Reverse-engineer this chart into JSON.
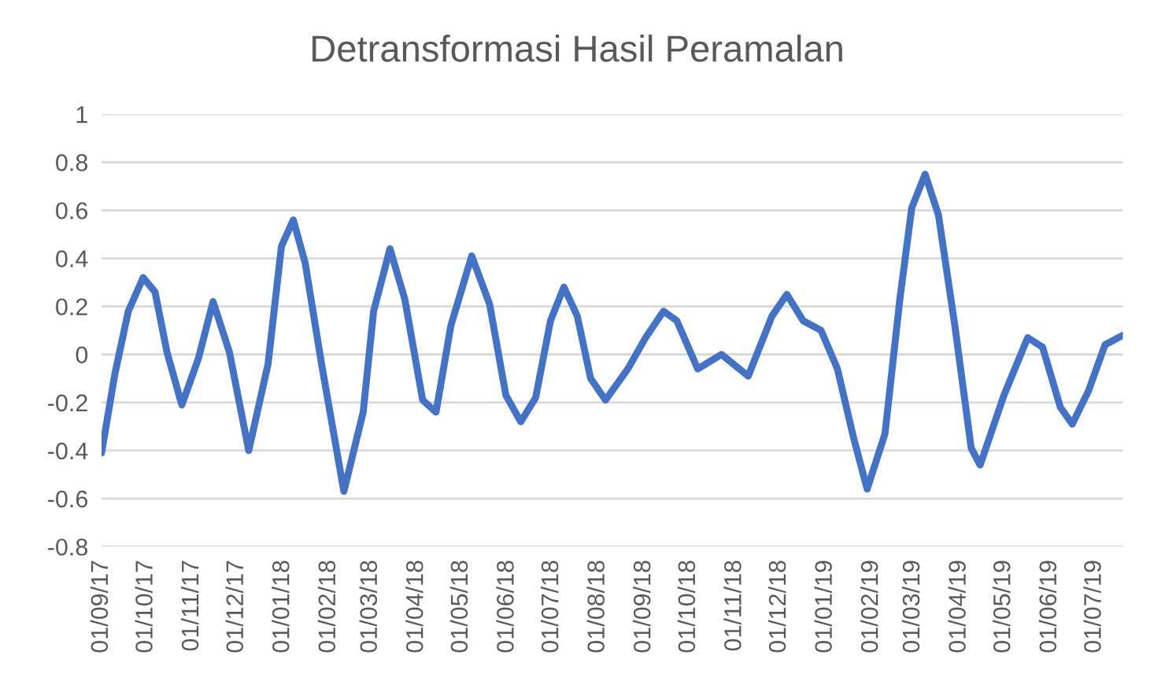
{
  "chart_data": {
    "type": "line",
    "title": "Detransformasi Hasil Peramalan",
    "x": [
      "2017-09-01",
      "2017-09-10",
      "2017-09-19",
      "2017-09-29",
      "2017-10-07",
      "2017-10-15",
      "2017-10-25",
      "2017-11-05",
      "2017-11-15",
      "2017-11-26",
      "2017-12-09",
      "2017-12-22",
      "2017-12-31",
      "2018-01-08",
      "2018-01-16",
      "2018-01-27",
      "2018-02-11",
      "2018-02-24",
      "2018-03-03",
      "2018-03-14",
      "2018-03-24",
      "2018-04-05",
      "2018-04-14",
      "2018-04-24",
      "2018-05-08",
      "2018-05-20",
      "2018-05-31",
      "2018-06-10",
      "2018-06-20",
      "2018-06-30",
      "2018-07-09",
      "2018-07-18",
      "2018-07-27",
      "2018-08-06",
      "2018-08-21",
      "2018-09-02",
      "2018-09-14",
      "2018-09-23",
      "2018-10-07",
      "2018-10-23",
      "2018-11-10",
      "2018-11-26",
      "2018-12-06",
      "2018-12-17",
      "2018-12-29",
      "2019-01-09",
      "2019-01-20",
      "2019-01-29",
      "2019-02-10",
      "2019-02-20",
      "2019-02-28",
      "2019-03-09",
      "2019-03-18",
      "2019-03-29",
      "2019-04-09",
      "2019-04-15",
      "2019-05-01",
      "2019-05-17",
      "2019-05-27",
      "2019-06-08",
      "2019-06-16",
      "2019-06-27",
      "2019-07-08",
      "2019-07-20"
    ],
    "series": [
      {
        "color": "#4472c4",
        "values": [
          -0.41,
          -0.08,
          0.18,
          0.32,
          0.26,
          0.01,
          -0.21,
          -0.02,
          0.22,
          0.01,
          -0.4,
          -0.04,
          0.45,
          0.56,
          0.38,
          -0.04,
          -0.57,
          -0.24,
          0.18,
          0.44,
          0.23,
          -0.19,
          -0.24,
          0.12,
          0.41,
          0.21,
          -0.17,
          -0.28,
          -0.18,
          0.14,
          0.28,
          0.16,
          -0.1,
          -0.19,
          -0.06,
          0.07,
          0.18,
          0.14,
          -0.06,
          0.0,
          -0.09,
          0.16,
          0.25,
          0.14,
          0.1,
          -0.06,
          -0.35,
          -0.56,
          -0.33,
          0.23,
          0.61,
          0.75,
          0.58,
          0.12,
          -0.39,
          -0.46,
          -0.17,
          0.07,
          0.03,
          -0.22,
          -0.29,
          -0.15,
          0.04,
          0.08
        ]
      }
    ],
    "xlim": [
      "2017-09-01",
      "2019-07-20"
    ],
    "xticks": [
      {
        "value": "2017-09-01",
        "label": "01/09/17"
      },
      {
        "value": "2017-10-01",
        "label": "01/10/17"
      },
      {
        "value": "2017-11-01",
        "label": "01/11/17"
      },
      {
        "value": "2017-12-01",
        "label": "01/12/17"
      },
      {
        "value": "2018-01-01",
        "label": "01/01/18"
      },
      {
        "value": "2018-02-01",
        "label": "01/02/18"
      },
      {
        "value": "2018-03-01",
        "label": "01/03/18"
      },
      {
        "value": "2018-04-01",
        "label": "01/04/18"
      },
      {
        "value": "2018-05-01",
        "label": "01/05/18"
      },
      {
        "value": "2018-06-01",
        "label": "01/06/18"
      },
      {
        "value": "2018-07-01",
        "label": "01/07/18"
      },
      {
        "value": "2018-08-01",
        "label": "01/08/18"
      },
      {
        "value": "2018-09-01",
        "label": "01/09/18"
      },
      {
        "value": "2018-10-01",
        "label": "01/10/18"
      },
      {
        "value": "2018-11-01",
        "label": "01/11/18"
      },
      {
        "value": "2018-12-01",
        "label": "01/12/18"
      },
      {
        "value": "2019-01-01",
        "label": "01/01/19"
      },
      {
        "value": "2019-02-01",
        "label": "01/02/19"
      },
      {
        "value": "2019-03-01",
        "label": "01/03/19"
      },
      {
        "value": "2019-04-01",
        "label": "01/04/19"
      },
      {
        "value": "2019-05-01",
        "label": "01/05/19"
      },
      {
        "value": "2019-06-01",
        "label": "01/06/19"
      },
      {
        "value": "2019-07-01",
        "label": "01/07/19"
      }
    ],
    "ylim": [
      -0.8,
      1
    ],
    "yticks": [
      -0.8,
      -0.6,
      -0.4,
      -0.2,
      0,
      0.2,
      0.4,
      0.6,
      0.8,
      1
    ],
    "grid": "y",
    "marker": "none",
    "line_style": "solid",
    "legend": false
  }
}
